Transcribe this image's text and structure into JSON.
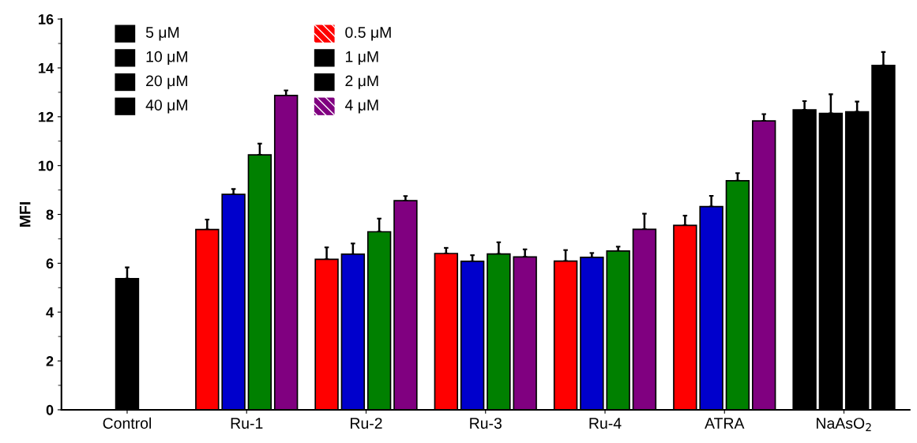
{
  "chart_data": {
    "type": "bar",
    "ylabel": "MFI",
    "categories": [
      "Control",
      "Ru-1",
      "Ru-2",
      "Ru-3",
      "Ru-4",
      "ATRA",
      "NaAsO$_{2}$"
    ],
    "ylim": [
      0,
      16
    ],
    "yticks": [
      0,
      2,
      4,
      6,
      8,
      10,
      12,
      14,
      16
    ],
    "grid": false,
    "annotations": [
      "5 μM",
      "10 μM",
      "20 μM",
      "40 μM",
      "0.5 μM",
      "1 μM",
      "2 μM",
      "4 μM"
    ],
    "series": [
      {
        "colors": [
          "#000000",
          "#ff0000",
          "#ff0000",
          "#ff0000",
          "#ff0000",
          "#ff0000",
          "#000000"
        ],
        "values": [
          5.37,
          7.38,
          6.16,
          6.4,
          6.09,
          7.55,
          12.28
        ],
        "errors": [
          [
            5.37,
            5.83
          ],
          [
            7.38,
            7.79
          ],
          [
            6.16,
            6.65
          ],
          [
            6.4,
            6.63
          ],
          [
            6.09,
            6.54
          ],
          [
            7.55,
            7.95
          ],
          [
            12.28,
            12.64
          ]
        ]
      },
      {
        "colors": [
          null,
          "#0000cc",
          "#0000cc",
          "#0000cc",
          "#0000cc",
          "#0000cc",
          "#000000"
        ],
        "values": [
          null,
          8.82,
          6.37,
          6.08,
          6.24,
          8.32,
          12.14
        ],
        "errors": [
          null,
          [
            8.82,
            9.04
          ],
          [
            6.37,
            6.81
          ],
          [
            6.08,
            6.33
          ],
          [
            6.24,
            6.42
          ],
          [
            8.32,
            8.76
          ],
          [
            12.14,
            12.92
          ]
        ]
      },
      {
        "colors": [
          null,
          "#008000",
          "#008000",
          "#008000",
          "#008000",
          "#008000",
          "#000000"
        ],
        "values": [
          null,
          10.44,
          7.29,
          6.38,
          6.5,
          9.38,
          12.2
        ],
        "errors": [
          null,
          [
            10.44,
            10.9
          ],
          [
            7.29,
            7.83
          ],
          [
            6.38,
            6.86
          ],
          [
            6.5,
            6.68
          ],
          [
            9.38,
            9.69
          ],
          [
            12.2,
            12.62
          ]
        ]
      },
      {
        "colors": [
          null,
          "#800080",
          "#800080",
          "#800080",
          "#800080",
          "#800080",
          "#000000"
        ],
        "values": [
          null,
          12.87,
          8.56,
          6.26,
          7.39,
          11.83,
          14.1
        ],
        "errors": [
          null,
          [
            12.87,
            13.08
          ],
          [
            8.56,
            8.75
          ],
          [
            6.26,
            6.57
          ],
          [
            7.39,
            8.03
          ],
          [
            11.83,
            12.11
          ],
          [
            14.1,
            14.65
          ]
        ]
      }
    ]
  }
}
